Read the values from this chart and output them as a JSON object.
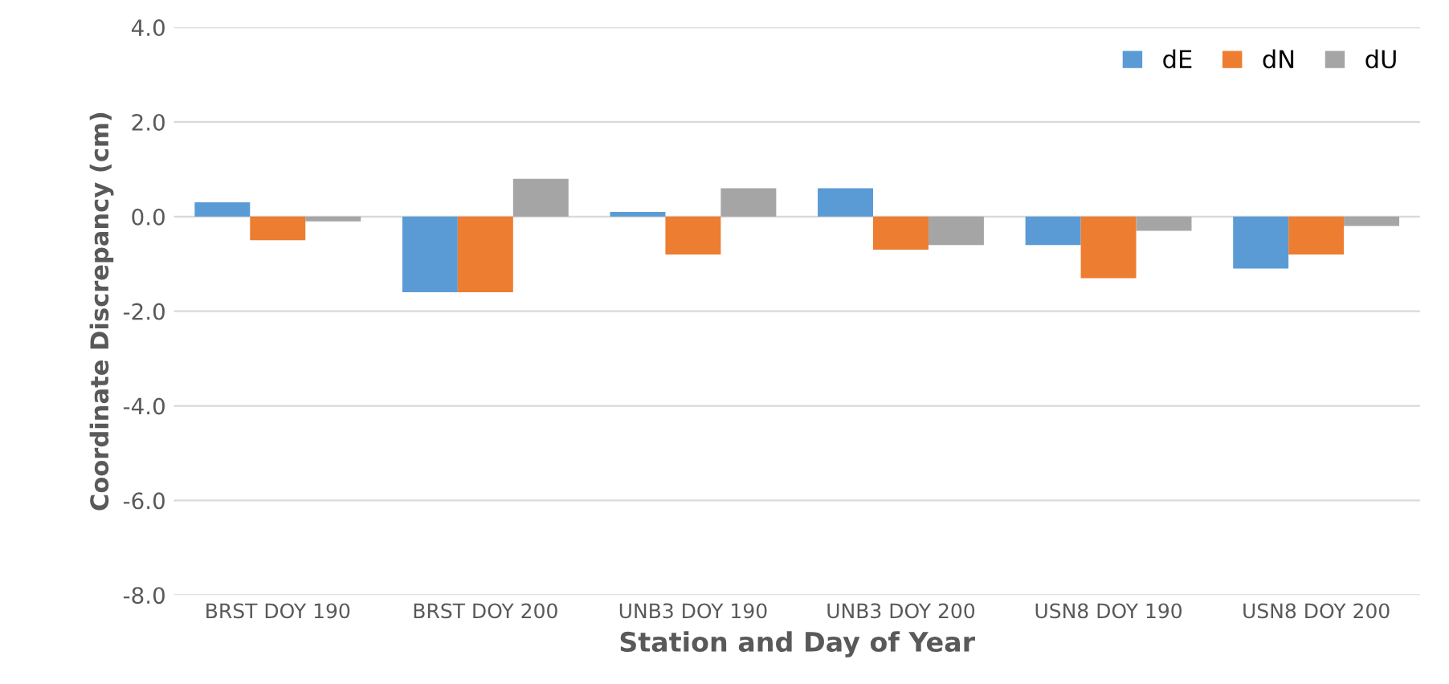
{
  "chart_data": {
    "type": "bar",
    "xlabel": "Station and Day of Year",
    "ylabel": "Coordinate Discrepancy (cm)",
    "categories": [
      "BRST DOY 190",
      "BRST DOY 200",
      "UNB3 DOY 190",
      "UNB3 DOY 200",
      "USN8 DOY 190",
      "USN8 DOY 200"
    ],
    "series": [
      {
        "name": "dE",
        "color": "#5b9bd5",
        "values": [
          0.3,
          -1.6,
          0.1,
          0.6,
          -0.6,
          -1.1
        ]
      },
      {
        "name": "dN",
        "color": "#ed7d31",
        "values": [
          -0.5,
          -1.6,
          -0.8,
          -0.7,
          -1.3,
          -0.8
        ]
      },
      {
        "name": "dU",
        "color": "#a5a5a5",
        "values": [
          -0.1,
          0.8,
          0.6,
          -0.6,
          -0.3,
          -0.2
        ]
      }
    ],
    "ylim": [
      -8,
      4
    ],
    "yticks": [
      {
        "value": -8,
        "label": "-8.0"
      },
      {
        "value": -6,
        "label": "-6.0"
      },
      {
        "value": -4,
        "label": "-4.0"
      },
      {
        "value": -2,
        "label": "-2.0"
      },
      {
        "value": 0,
        "label": "0.0"
      },
      {
        "value": 2,
        "label": "2.0"
      },
      {
        "value": 4,
        "label": "4.0"
      }
    ],
    "grid": "y",
    "legend": "top right"
  }
}
